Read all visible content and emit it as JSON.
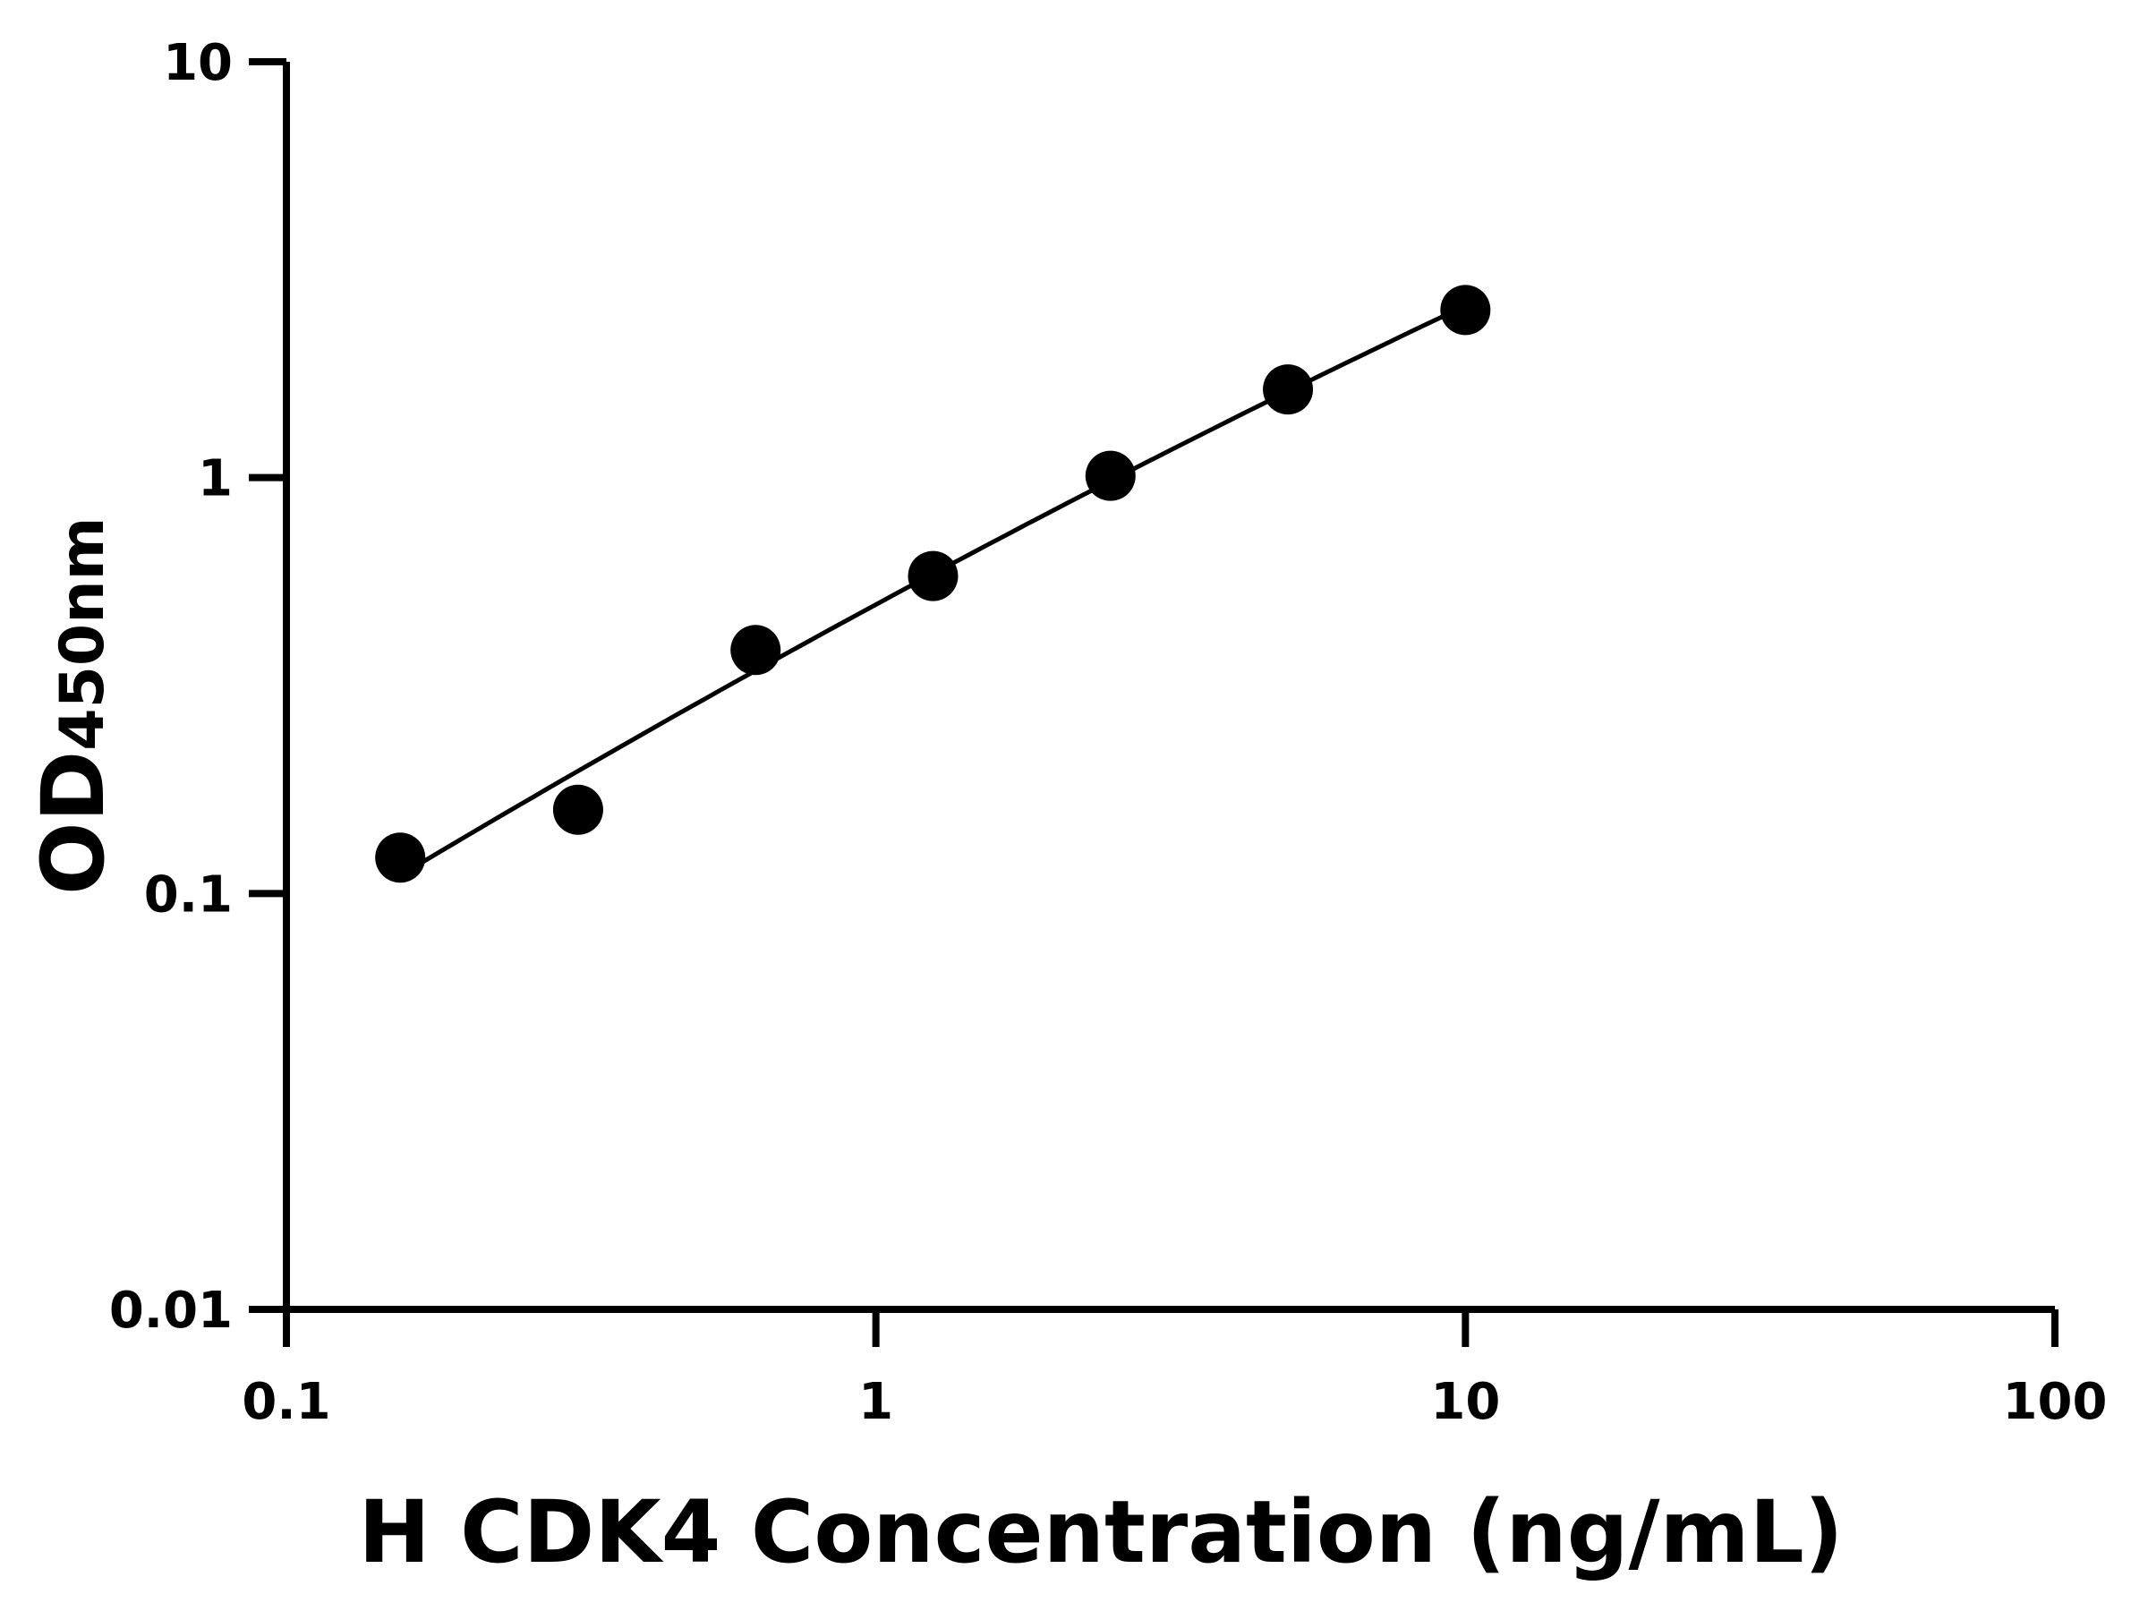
{
  "chart_data": {
    "type": "scatter",
    "xlabel": "H CDK4 Concentration (ng/mL)",
    "ylabel_main": "OD",
    "ylabel_sub": "450nm",
    "x_scale": "log",
    "y_scale": "log",
    "xlim": [
      0.1,
      100
    ],
    "ylim": [
      0.01,
      10
    ],
    "x_ticks": [
      "0.1",
      "1",
      "10",
      "100"
    ],
    "y_ticks": [
      "0.01",
      "0.1",
      "1",
      "10"
    ],
    "grid": false,
    "fit_curve": true,
    "points": [
      {
        "x": 0.156,
        "y": 0.122
      },
      {
        "x": 0.3125,
        "y": 0.159
      },
      {
        "x": 0.625,
        "y": 0.385
      },
      {
        "x": 1.25,
        "y": 0.58
      },
      {
        "x": 2.5,
        "y": 1.01
      },
      {
        "x": 5,
        "y": 1.63
      },
      {
        "x": 10,
        "y": 2.53
      }
    ],
    "colors": {
      "marker": "#000000",
      "line": "#000000"
    }
  }
}
